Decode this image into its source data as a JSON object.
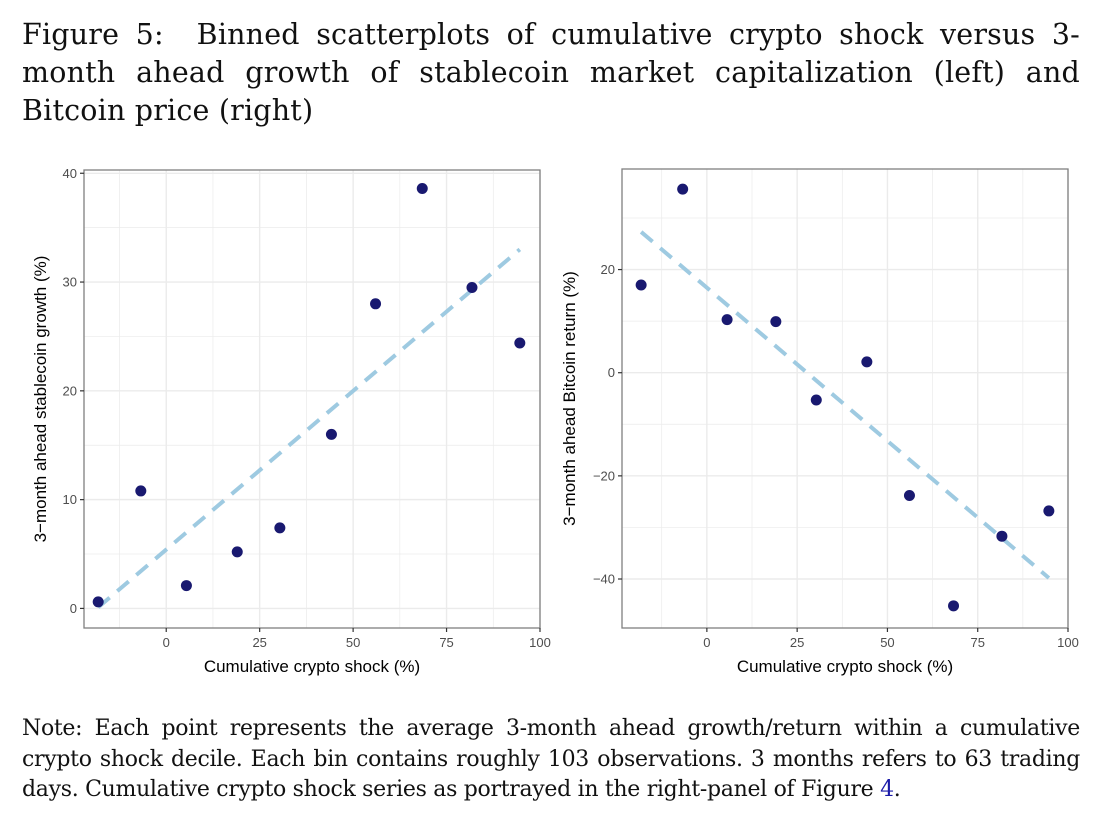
{
  "caption": {
    "label": "Figure 5:",
    "text": "Binned scatterplots of cumulative crypto shock versus 3-month ahead growth of stablecoin market capitalization (left) and Bitcoin price (right)"
  },
  "note": {
    "text": "Note: Each point represents the average 3-month ahead growth/return within a cumulative crypto shock decile. Each bin contains roughly 103 observations. 3 months refers to 63 trading days. Cumulative crypto shock series as portrayed in the right-panel of Figure ",
    "ref": "4",
    "end": "."
  },
  "colors": {
    "point": "#191970",
    "fit_line": "#9ecae1",
    "grid": "#ebebeb",
    "panel_border": "#7f7f7f"
  },
  "chart_data": [
    {
      "type": "scatter",
      "title": "",
      "xlabel": "Cumulative crypto shock (%)",
      "ylabel": "3−month ahead stablecoin growth (%)",
      "xlim": [
        -22,
        100
      ],
      "ylim": [
        -1.8,
        40.3
      ],
      "xticks": [
        0,
        25,
        50,
        75,
        100
      ],
      "xtick_labels": [
        "0",
        "25",
        "50",
        "75",
        "100"
      ],
      "yticks": [
        0,
        10,
        20,
        30,
        40
      ],
      "ytick_labels": [
        "0",
        "10",
        "20",
        "30",
        "40"
      ],
      "grid": true,
      "legend": "none",
      "points": [
        {
          "x": -18.2,
          "y": 0.6
        },
        {
          "x": -6.8,
          "y": 10.8
        },
        {
          "x": 5.4,
          "y": 2.1
        },
        {
          "x": 19.0,
          "y": 5.2
        },
        {
          "x": 30.4,
          "y": 7.4
        },
        {
          "x": 44.2,
          "y": 16.0
        },
        {
          "x": 56.0,
          "y": 28.0
        },
        {
          "x": 68.5,
          "y": 38.6
        },
        {
          "x": 81.8,
          "y": 29.5
        },
        {
          "x": 94.6,
          "y": 24.4
        }
      ],
      "fit_line": {
        "style": "dashed",
        "from": {
          "x": -18.2,
          "y": 0.1
        },
        "to": {
          "x": 94.6,
          "y": 33.0
        }
      }
    },
    {
      "type": "scatter",
      "title": "",
      "xlabel": "Cumulative crypto shock (%)",
      "ylabel": "3−month ahead Bitcoin return (%)",
      "xlim": [
        -23.5,
        100
      ],
      "ylim": [
        -49.5,
        39.5
      ],
      "xticks": [
        0,
        25,
        50,
        75,
        100
      ],
      "xtick_labels": [
        "0",
        "25",
        "50",
        "75",
        "100"
      ],
      "yticks": [
        -40,
        -20,
        0,
        20
      ],
      "ytick_labels": [
        "−40",
        "−20",
        "0",
        "20"
      ],
      "grid": true,
      "legend": "none",
      "points": [
        {
          "x": -18.2,
          "y": 17.0
        },
        {
          "x": -6.7,
          "y": 35.6
        },
        {
          "x": 5.6,
          "y": 10.3
        },
        {
          "x": 19.1,
          "y": 9.9
        },
        {
          "x": 30.3,
          "y": -5.3
        },
        {
          "x": 44.3,
          "y": 2.1
        },
        {
          "x": 56.1,
          "y": -23.8
        },
        {
          "x": 68.3,
          "y": -45.2
        },
        {
          "x": 81.7,
          "y": -31.7
        },
        {
          "x": 94.7,
          "y": -26.8
        }
      ],
      "fit_line": {
        "style": "dashed",
        "from": {
          "x": -18.2,
          "y": 27.3
        },
        "to": {
          "x": 94.7,
          "y": -39.8
        }
      }
    }
  ]
}
